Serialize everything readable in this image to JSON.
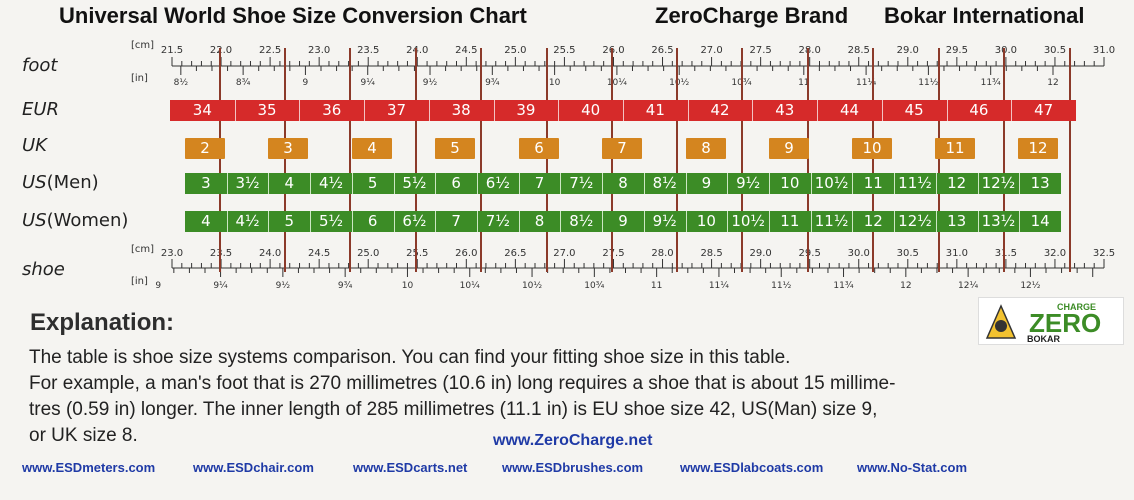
{
  "header": {
    "title": "Universal World Shoe Size Conversion Chart",
    "brand": "ZeroCharge Brand",
    "company": "Bokar International"
  },
  "labels": {
    "foot": "foot",
    "eur": "EUR",
    "uk": "UK",
    "us_men_prefix": "US",
    "us_men_suffix": "(Men)",
    "us_women_prefix": "US",
    "us_women_suffix": "(Women)",
    "shoe": "shoe",
    "cm": "[cm]",
    "in": "[in]"
  },
  "foot_ruler": {
    "cm": [
      "21.5",
      "22.0",
      "22.5",
      "23.0",
      "23.5",
      "24.0",
      "24.5",
      "25.0",
      "25.5",
      "26.0",
      "26.5",
      "27.0",
      "27.5",
      "28.0",
      "28.5",
      "29.0",
      "29.5",
      "30.0",
      "30.5",
      "31.0"
    ],
    "in": [
      "8½",
      "8¾",
      "9",
      "9¼",
      "9½",
      "9¾",
      "10",
      "10¼",
      "10½",
      "10¾",
      "11",
      "11¼",
      "11½",
      "11¾",
      "12"
    ]
  },
  "shoe_ruler": {
    "cm": [
      "23.0",
      "23.5",
      "24.0",
      "24.5",
      "25.0",
      "25.5",
      "26.0",
      "26.5",
      "27.0",
      "27.5",
      "28.0",
      "28.5",
      "29.0",
      "29.5",
      "30.0",
      "30.5",
      "31.0",
      "31.5",
      "32.0",
      "32.5"
    ],
    "in": [
      "9",
      "9¼",
      "9½",
      "9¾",
      "10",
      "10¼",
      "10½",
      "10¾",
      "11",
      "11¼",
      "11½",
      "11¾",
      "12",
      "12¼",
      "12½"
    ]
  },
  "eur": [
    "34",
    "35",
    "36",
    "37",
    "38",
    "39",
    "40",
    "41",
    "42",
    "43",
    "44",
    "45",
    "46",
    "47"
  ],
  "uk": [
    "2",
    "3",
    "4",
    "5",
    "6",
    "7",
    "8",
    "9",
    "10",
    "11",
    "12"
  ],
  "us_men": [
    "3",
    "3½",
    "4",
    "4½",
    "5",
    "5½",
    "6",
    "6½",
    "7",
    "7½",
    "8",
    "8½",
    "9",
    "9½",
    "10",
    "10½",
    "11",
    "11½",
    "12",
    "12½",
    "13"
  ],
  "us_women": [
    "4",
    "4½",
    "5",
    "5½",
    "6",
    "6½",
    "7",
    "7½",
    "8",
    "8½",
    "9",
    "9½",
    "10",
    "10½",
    "11",
    "11½",
    "12",
    "12½",
    "13",
    "13½",
    "14"
  ],
  "colors": {
    "eur": "#d62a2a",
    "uk": "#d4851f",
    "us": "#3c8c26",
    "divider": "#8b3a2a",
    "link": "#1f3aa6"
  },
  "explanation": {
    "title": "Explanation:",
    "lines": [
      "The table is shoe size systems comparison. You can find your fitting shoe size in this table.",
      "For example, a man's foot that is 270 millimetres (10.6 in) long requires a shoe that is about 15 millime-",
      "tres (0.59 in) longer. The inner length of 285 millimetres (11.1 in) is EU shoe size 42, US(Man) size 9,",
      "or UK size 8."
    ]
  },
  "urls": {
    "main": "www.ZeroCharge.net",
    "footer": [
      "www.ESDmeters.com",
      "www.ESDchair.com",
      "www.ESDcarts.net",
      "www.ESDbrushes.com",
      "www.ESDlabcoats.com",
      "www.No-Stat.com"
    ]
  },
  "logo": {
    "charge": "CHARGE",
    "zero": "ZERO",
    "bokar": "BOKAR"
  }
}
